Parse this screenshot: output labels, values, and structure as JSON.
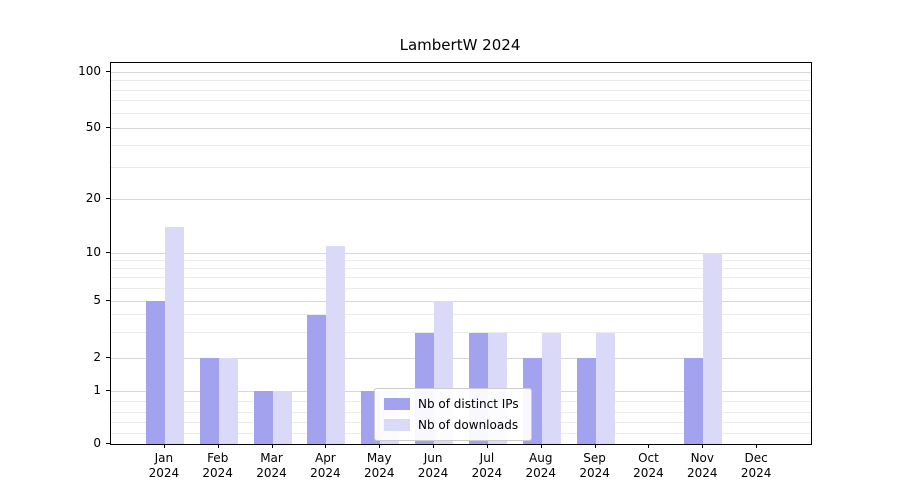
{
  "title": "LambertW 2024",
  "chart_data": {
    "type": "bar",
    "title": "LambertW 2024",
    "categories": [
      "Jan",
      "Feb",
      "Mar",
      "Apr",
      "May",
      "Jun",
      "Jul",
      "Aug",
      "Sep",
      "Oct",
      "Nov",
      "Dec"
    ],
    "year": "2024",
    "series": [
      {
        "name": "Nb of distinct IPs",
        "color": "#a2a2ee",
        "values": [
          5,
          2,
          1,
          4,
          1,
          3,
          3,
          2,
          2,
          0,
          2,
          0
        ]
      },
      {
        "name": "Nb of downloads",
        "color": "#dadaf8",
        "values": [
          14,
          2,
          1,
          11,
          1,
          5,
          3,
          3,
          3,
          0,
          10,
          0
        ]
      }
    ],
    "xlabel": "",
    "ylabel": "",
    "yscale": "asinh-log",
    "y_ticks": [
      0,
      1,
      2,
      5,
      10,
      20,
      50,
      100
    ],
    "y_minor_gridlines": [
      0.2,
      0.4,
      0.6,
      0.8,
      3,
      4,
      6,
      7,
      8,
      9,
      30,
      40,
      60,
      70,
      80,
      90
    ],
    "ylim": [
      0,
      115
    ],
    "grid": true,
    "legend_position": "lower center inside axes"
  }
}
